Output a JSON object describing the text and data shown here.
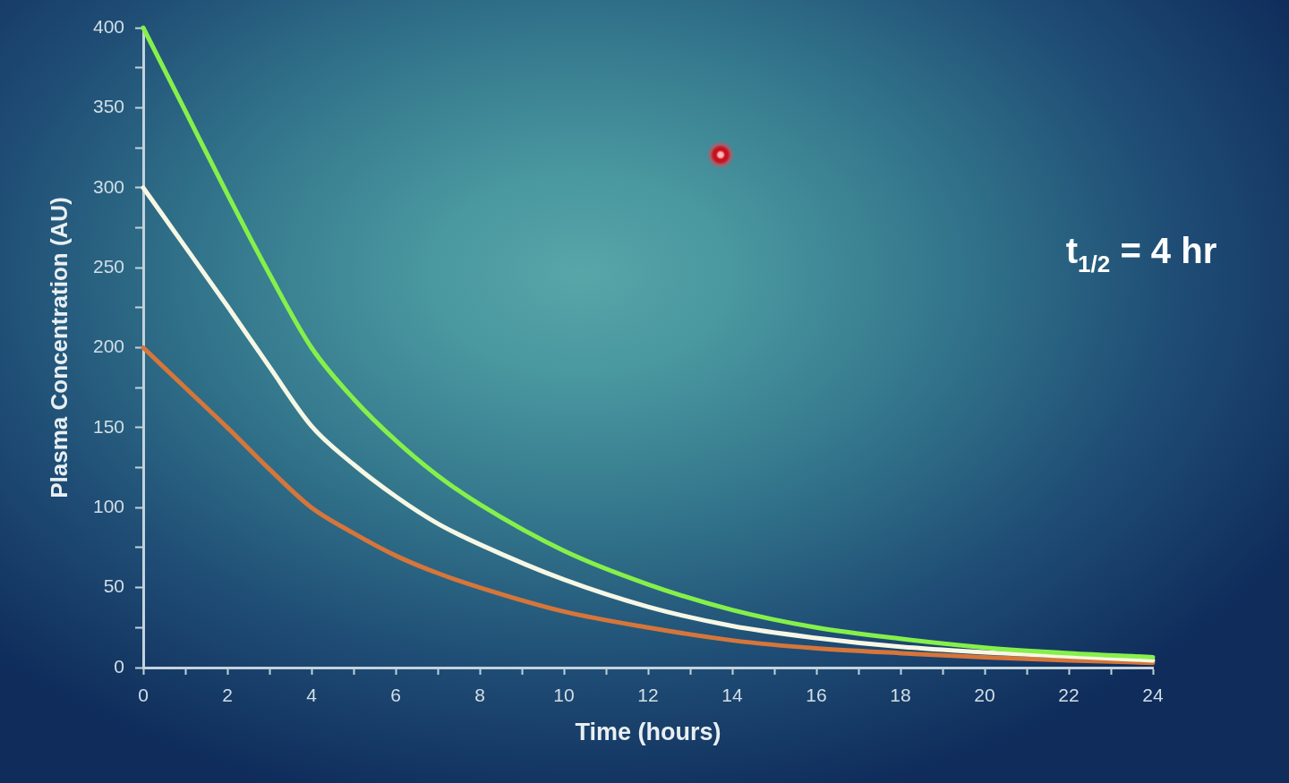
{
  "chart_data": {
    "type": "line",
    "xlabel": "Time (hours)",
    "ylabel": "Plasma Concentration (AU)",
    "annotations": [
      "t$_{1/2}$ = 4 hr"
    ],
    "x": [
      0,
      1,
      2,
      3,
      4,
      5,
      6,
      7,
      8,
      10,
      12,
      14,
      16,
      18,
      20,
      22,
      24
    ],
    "series": [
      {
        "color": "#86f04a",
        "values": [
          400,
          348,
          296,
          246,
          200,
          168,
          142,
          120,
          102,
          73,
          52,
          36,
          25,
          18,
          12.5,
          9,
          6.5
        ]
      },
      {
        "color": "#f6f7e4",
        "values": [
          300,
          263,
          226,
          188,
          151,
          127,
          107,
          90,
          77,
          55,
          38,
          26,
          18.5,
          13,
          9.5,
          7,
          4.5
        ]
      },
      {
        "color": "#d5763a",
        "values": [
          200,
          175,
          150,
          124,
          100,
          84,
          70,
          59,
          50,
          35,
          25,
          17,
          12,
          9,
          6.5,
          4.5,
          3
        ]
      }
    ],
    "xlim": [
      0,
      24
    ],
    "ylim": [
      0,
      400
    ],
    "xticks": [
      0,
      {
        "value": 1,
        "label": null
      },
      2,
      {
        "value": 3,
        "label": null
      },
      4,
      {
        "value": 5,
        "label": null
      },
      6,
      {
        "value": 7,
        "label": null
      },
      8,
      {
        "value": 9,
        "label": null
      },
      10,
      {
        "value": 11,
        "label": null
      },
      12,
      {
        "value": 13,
        "label": null
      },
      14,
      {
        "value": 15,
        "label": null
      },
      16,
      {
        "value": 17,
        "label": null
      },
      18,
      {
        "value": 19,
        "label": null
      },
      20,
      {
        "value": 21,
        "label": null
      },
      22,
      {
        "value": 23,
        "label": null
      },
      24
    ],
    "yticks": [
      0,
      {
        "value": 25,
        "label": null
      },
      50,
      {
        "value": 75,
        "label": null
      },
      100,
      {
        "value": 125,
        "label": null
      },
      150,
      {
        "value": 175,
        "label": null
      },
      200,
      {
        "value": 225,
        "label": null
      },
      250,
      {
        "value": 275,
        "label": null
      },
      300,
      {
        "value": 325,
        "label": null
      },
      350,
      {
        "value": 375,
        "label": null
      },
      400
    ],
    "marker": "none",
    "line_style": "solid"
  }
}
